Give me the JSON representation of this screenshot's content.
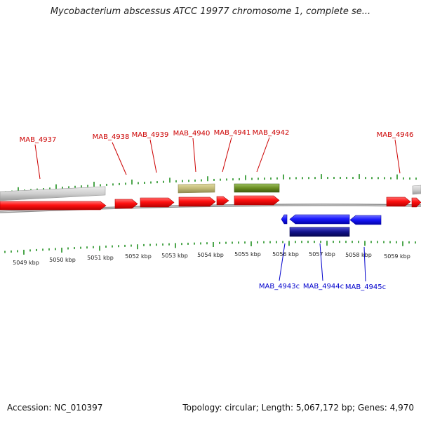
{
  "title": "Mycobacterium abscessus ATCC 19977 chromosome 1, complete se...",
  "footer": {
    "accession": "Accession: NC_010397",
    "summary": "Topology: circular; Length: 5,067,172 bp; Genes: 4,970"
  },
  "colors": {
    "forward_cds": "#ff0000",
    "reverse_cds": "#0000ff",
    "forward_label": "#cc0000",
    "reverse_label": "#0000cc",
    "gray_feature": "#c8c8c8",
    "khaki_feature": "#bdb56e",
    "olive_feature": "#6b8e23",
    "navy_feature": "#0a0a80",
    "tick": "#008000",
    "backbone": "#808080"
  },
  "kbp_labels": [
    "5049 kbp",
    "5050 kbp",
    "5051 kbp",
    "5052 kbp",
    "5053 kbp",
    "5054 kbp",
    "5055 kbp",
    "5056 kbp",
    "5057 kbp",
    "5058 kbp",
    "5059 kbp"
  ],
  "forward_genes": [
    {
      "name": "MAB_4937"
    },
    {
      "name": "MAB_4938"
    },
    {
      "name": "MAB_4939"
    },
    {
      "name": "MAB_4940"
    },
    {
      "name": "MAB_4941"
    },
    {
      "name": "MAB_4942"
    },
    {
      "name": "MAB_4946"
    }
  ],
  "reverse_genes": [
    {
      "name": "MAB_4943c"
    },
    {
      "name": "MAB_4944c"
    },
    {
      "name": "MAB_4945c"
    }
  ]
}
